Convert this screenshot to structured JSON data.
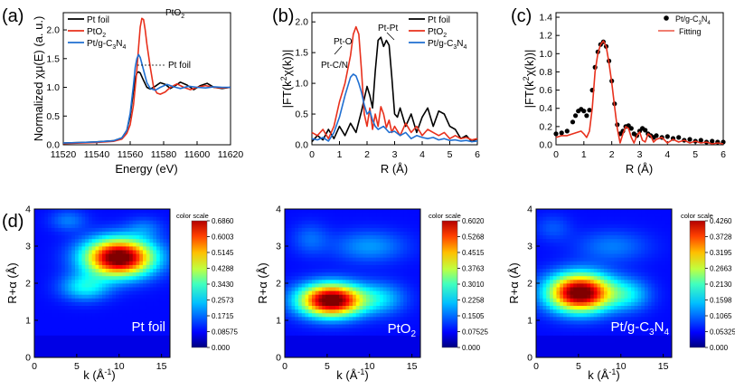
{
  "chart_data": [
    {
      "panel_label": "(a)",
      "type": "line",
      "xlabel": "Energy (eV)",
      "ylabel_parts": [
        "Normalized ",
        "χ",
        "μ(E) (a. u.)"
      ],
      "xlim": [
        11520,
        11620
      ],
      "ylim": [
        0,
        2.3
      ],
      "xticks": [
        "11520",
        "11540",
        "11560",
        "11580",
        "11600",
        "11620"
      ],
      "yticks": [
        "0.0",
        "0.5",
        "1.0",
        "1.5",
        "2.0"
      ],
      "legend": [
        {
          "name": "Pt foil",
          "sub": "",
          "color": "#000000"
        },
        {
          "name": "PtO",
          "sub": "2",
          "color": "#e8301c"
        },
        {
          "name": "Pt/g-C",
          "sub": "3",
          "name2": "N",
          "sub2": "4",
          "color": "#1f6fd1"
        }
      ],
      "annotations": [
        {
          "text": "PtO",
          "sub": "2"
        },
        {
          "text": "Pt foil",
          "sub": ""
        }
      ],
      "series": [
        {
          "name": "Pt foil",
          "color": "#000000",
          "x": [
            11520,
            11530,
            11540,
            11550,
            11555,
            11558,
            11560,
            11562,
            11563,
            11564,
            11565,
            11566,
            11568,
            11570,
            11572,
            11575,
            11578,
            11581,
            11584,
            11587,
            11590,
            11594,
            11598,
            11602,
            11606,
            11610,
            11615,
            11620
          ],
          "y": [
            0.03,
            0.04,
            0.05,
            0.07,
            0.12,
            0.25,
            0.5,
            0.95,
            1.15,
            1.25,
            1.27,
            1.25,
            1.12,
            1.0,
            0.97,
            1.02,
            1.08,
            1.05,
            0.98,
            1.03,
            1.09,
            1.04,
            0.96,
            1.03,
            1.07,
            1.0,
            0.98,
            1.0
          ]
        },
        {
          "name": "PtO2",
          "color": "#e8301c",
          "x": [
            11520,
            11530,
            11540,
            11550,
            11555,
            11558,
            11560,
            11562,
            11564,
            11565,
            11566,
            11567,
            11568,
            11569,
            11570,
            11572,
            11574,
            11576,
            11578,
            11581,
            11584,
            11588,
            11592,
            11596,
            11600,
            11605,
            11610,
            11615,
            11620
          ],
          "y": [
            0.02,
            0.03,
            0.04,
            0.06,
            0.1,
            0.2,
            0.35,
            0.7,
            1.3,
            1.7,
            2.05,
            2.2,
            2.18,
            2.0,
            1.75,
            1.35,
            1.0,
            0.9,
            0.88,
            0.92,
            1.0,
            1.06,
            1.0,
            0.96,
            1.0,
            1.03,
            1.0,
            0.99,
            1.0
          ]
        },
        {
          "name": "Pt/g-C3N4",
          "color": "#1f6fd1",
          "x": [
            11520,
            11530,
            11540,
            11550,
            11555,
            11558,
            11560,
            11562,
            11563,
            11564,
            11565,
            11566,
            11568,
            11570,
            11572,
            11575,
            11578,
            11582,
            11586,
            11590,
            11595,
            11600,
            11605,
            11610,
            11615,
            11620
          ],
          "y": [
            0.03,
            0.04,
            0.05,
            0.07,
            0.12,
            0.25,
            0.55,
            1.05,
            1.35,
            1.5,
            1.57,
            1.52,
            1.3,
            1.08,
            0.98,
            0.95,
            1.0,
            1.05,
            1.01,
            0.98,
            1.02,
            1.0,
            0.99,
            1.01,
            1.0,
            1.0
          ]
        }
      ]
    },
    {
      "panel_label": "(b)",
      "type": "line",
      "xlabel": "R (Å)",
      "ylabel_parts": [
        "|FT(k",
        "2",
        "χ(k))|"
      ],
      "xlim": [
        0,
        6
      ],
      "ylim": [
        0,
        2.15
      ],
      "xticks": [
        "0",
        "1",
        "2",
        "3",
        "4",
        "5",
        "6"
      ],
      "yticks": [
        "0.0",
        "0.5",
        "1.0",
        "1.5",
        "2.0"
      ],
      "legend": [
        {
          "name": "Pt foil",
          "sub": "",
          "color": "#000000"
        },
        {
          "name": "PtO",
          "sub": "2",
          "color": "#e8301c"
        },
        {
          "name": "Pt/g-C",
          "sub": "3",
          "name2": "N",
          "sub2": "4",
          "color": "#1f6fd1"
        }
      ],
      "annotations": [
        {
          "text": "Pt-O",
          "sub": ""
        },
        {
          "text": "Pt-Pt",
          "sub": ""
        },
        {
          "text": "Pt-C/N",
          "sub": ""
        }
      ],
      "series": [
        {
          "name": "Pt foil",
          "color": "#000000",
          "x": [
            0,
            0.2,
            0.4,
            0.6,
            0.8,
            1.0,
            1.2,
            1.4,
            1.6,
            1.8,
            2.0,
            2.1,
            2.2,
            2.3,
            2.4,
            2.5,
            2.6,
            2.7,
            2.8,
            2.9,
            3.0,
            3.1,
            3.2,
            3.4,
            3.6,
            3.8,
            4.0,
            4.2,
            4.4,
            4.6,
            4.8,
            5.0,
            5.2,
            5.4,
            5.6,
            5.8,
            6.0
          ],
          "y": [
            0.05,
            0.15,
            0.08,
            0.25,
            0.1,
            0.3,
            0.15,
            0.35,
            0.2,
            0.55,
            0.95,
            0.8,
            0.6,
            1.2,
            1.7,
            1.75,
            1.6,
            1.7,
            1.62,
            1.1,
            0.5,
            0.45,
            0.6,
            0.3,
            0.5,
            0.2,
            0.45,
            0.6,
            0.3,
            0.55,
            0.5,
            0.3,
            0.25,
            0.1,
            0.15,
            0.05,
            0.1
          ]
        },
        {
          "name": "PtO2",
          "color": "#e8301c",
          "x": [
            0,
            0.2,
            0.4,
            0.6,
            0.8,
            1.0,
            1.2,
            1.4,
            1.5,
            1.6,
            1.7,
            1.8,
            1.9,
            2.0,
            2.1,
            2.2,
            2.3,
            2.4,
            2.5,
            2.6,
            2.7,
            2.8,
            2.9,
            3.0,
            3.2,
            3.4,
            3.6,
            3.8,
            4.0,
            4.2,
            4.4,
            4.6,
            4.8,
            5.0,
            5.2,
            5.4,
            5.6,
            5.8,
            6.0
          ],
          "y": [
            0.2,
            0.15,
            0.25,
            0.1,
            0.3,
            0.7,
            1.0,
            1.45,
            1.8,
            1.92,
            1.8,
            1.2,
            0.5,
            0.3,
            0.6,
            0.25,
            0.5,
            0.3,
            0.62,
            0.5,
            0.28,
            0.4,
            0.2,
            0.3,
            0.15,
            0.35,
            0.2,
            0.3,
            0.15,
            0.25,
            0.2,
            0.15,
            0.2,
            0.1,
            0.15,
            0.1,
            0.12,
            0.08,
            0.1
          ]
        },
        {
          "name": "Pt/g-C3N4",
          "color": "#1f6fd1",
          "x": [
            0,
            0.2,
            0.4,
            0.6,
            0.8,
            1.0,
            1.2,
            1.4,
            1.5,
            1.6,
            1.7,
            1.8,
            1.9,
            2.0,
            2.1,
            2.2,
            2.3,
            2.4,
            2.6,
            2.8,
            3.0,
            3.2,
            3.4,
            3.6,
            3.8,
            4.0,
            4.2,
            4.4,
            4.6,
            4.8,
            5.0,
            5.2,
            5.4,
            5.6,
            5.8,
            6.0
          ],
          "y": [
            0.1,
            0.08,
            0.12,
            0.06,
            0.2,
            0.45,
            0.8,
            1.1,
            1.15,
            1.12,
            1.0,
            0.85,
            0.65,
            0.5,
            0.55,
            0.4,
            0.3,
            0.25,
            0.3,
            0.2,
            0.22,
            0.15,
            0.2,
            0.1,
            0.15,
            0.12,
            0.1,
            0.12,
            0.08,
            0.1,
            0.07,
            0.08,
            0.06,
            0.07,
            0.05,
            0.06
          ]
        }
      ]
    },
    {
      "panel_label": "(c)",
      "type": "line",
      "xlabel": "R (Å)",
      "ylabel_parts": [
        "|FT(k",
        "2",
        "χ(k))|"
      ],
      "xlim": [
        0,
        6
      ],
      "ylim": [
        0,
        1.45
      ],
      "xticks": [
        "0",
        "1",
        "2",
        "3",
        "4",
        "5",
        "6"
      ],
      "yticks": [
        "0.0",
        "0.2",
        "0.4",
        "0.6",
        "0.8",
        "1.0",
        "1.2",
        "1.4"
      ],
      "legend": [
        {
          "name": "Pt/g-C",
          "sub": "3",
          "name2": "N",
          "sub2": "4",
          "color": "#000000",
          "marker": "dot"
        },
        {
          "name": "Fitting",
          "sub": "",
          "color": "#e8301c"
        }
      ],
      "series": [
        {
          "name": "Pt/g-C3N4",
          "color": "#000000",
          "marker": "dot",
          "x": [
            0,
            0.2,
            0.4,
            0.6,
            0.7,
            0.8,
            0.9,
            1.0,
            1.1,
            1.2,
            1.3,
            1.4,
            1.5,
            1.6,
            1.7,
            1.8,
            1.9,
            2.0,
            2.1,
            2.2,
            2.3,
            2.4,
            2.5,
            2.6,
            2.7,
            2.8,
            2.9,
            3.0,
            3.1,
            3.2,
            3.3,
            3.4,
            3.5,
            3.6,
            3.8,
            4.0,
            4.2,
            4.4,
            4.6,
            4.8,
            5.0,
            5.2,
            5.4,
            5.6,
            5.8,
            6.0
          ],
          "y": [
            0.12,
            0.13,
            0.15,
            0.25,
            0.32,
            0.37,
            0.39,
            0.37,
            0.32,
            0.38,
            0.6,
            0.85,
            1.02,
            1.1,
            1.13,
            1.08,
            0.92,
            0.7,
            0.45,
            0.22,
            0.12,
            0.15,
            0.2,
            0.21,
            0.18,
            0.12,
            0.1,
            0.15,
            0.18,
            0.16,
            0.12,
            0.1,
            0.08,
            0.1,
            0.08,
            0.09,
            0.07,
            0.08,
            0.05,
            0.06,
            0.04,
            0.05,
            0.03,
            0.04,
            0.03,
            0.03
          ]
        },
        {
          "name": "Fitting",
          "color": "#e8301c",
          "x": [
            0,
            0.2,
            0.4,
            0.6,
            0.7,
            0.8,
            0.9,
            1.0,
            1.1,
            1.2,
            1.3,
            1.4,
            1.5,
            1.6,
            1.7,
            1.8,
            1.9,
            2.0,
            2.1,
            2.2,
            2.3,
            2.4,
            2.5,
            2.6,
            2.7,
            2.8,
            2.9,
            3.0,
            3.1,
            3.2,
            3.3,
            3.4,
            3.5,
            3.6,
            3.8,
            4.0,
            4.2,
            4.4,
            4.6,
            4.8,
            5.0,
            5.2,
            5.4,
            5.6,
            5.8,
            6.0
          ],
          "y": [
            0.08,
            0.1,
            0.1,
            0.12,
            0.13,
            0.14,
            0.15,
            0.12,
            0.08,
            0.15,
            0.4,
            0.8,
            1.0,
            1.1,
            1.14,
            1.08,
            0.9,
            0.68,
            0.42,
            0.18,
            0.02,
            0.12,
            0.2,
            0.18,
            0.08,
            0.02,
            0.1,
            0.14,
            0.05,
            0.03,
            0.12,
            0.1,
            0.03,
            0.06,
            0.08,
            0.02,
            0.06,
            0.03,
            0.05,
            0.02,
            0.04,
            0.02,
            0.03,
            0.01,
            0.02,
            0.01
          ]
        }
      ]
    },
    {
      "panel_label": "(d)",
      "type": "heatmap",
      "sample": "Pt foil",
      "sample_parts": [
        "Pt foil"
      ],
      "xlabel_parts": [
        "k (Å",
        "-1",
        ")"
      ],
      "ylabel": "R+α (Å)",
      "xlim": [
        0,
        16
      ],
      "ylim": [
        0,
        4
      ],
      "xticks": [
        "0",
        "5",
        "10",
        "15"
      ],
      "yticks": [
        "0",
        "1",
        "2",
        "3",
        "4"
      ],
      "colorbar_title": "color scale",
      "colorbar_ticks": [
        "0.6860",
        "0.6003",
        "0.5145",
        "0.4288",
        "0.3430",
        "0.2573",
        "0.1715",
        "0.08575",
        "0.000"
      ],
      "peaks": [
        {
          "k": 10.0,
          "r": 2.7,
          "amp": 1.0,
          "sk": 2.8,
          "sr": 0.35
        },
        {
          "k": 6.0,
          "r": 1.9,
          "amp": 0.25,
          "sk": 2.0,
          "sr": 0.25
        },
        {
          "k": 4.0,
          "r": 3.7,
          "amp": 0.12,
          "sk": 1.5,
          "sr": 0.2
        },
        {
          "k": 13.0,
          "r": 3.5,
          "amp": 0.1,
          "sk": 1.5,
          "sr": 0.2
        }
      ]
    },
    {
      "panel_label": "",
      "type": "heatmap",
      "sample": "PtO2",
      "sample_parts": [
        "PtO",
        "2"
      ],
      "xlabel_parts": [
        "k (Å",
        "-1",
        ")"
      ],
      "ylabel": "R+α (Å)",
      "xlim": [
        0,
        16
      ],
      "ylim": [
        0,
        4
      ],
      "xticks": [
        "0",
        "5",
        "10",
        "15"
      ],
      "yticks": [
        "0",
        "1",
        "2",
        "3",
        "4"
      ],
      "colorbar_title": "color scale",
      "colorbar_ticks": [
        "0.6020",
        "0.5268",
        "0.4515",
        "0.3763",
        "0.3010",
        "0.2258",
        "0.1505",
        "0.07525",
        "0.000"
      ],
      "peaks": [
        {
          "k": 5.5,
          "r": 1.55,
          "amp": 1.0,
          "sk": 2.6,
          "sr": 0.3
        },
        {
          "k": 11.5,
          "r": 1.6,
          "amp": 0.18,
          "sk": 2.0,
          "sr": 0.3
        },
        {
          "k": 10.0,
          "r": 3.0,
          "amp": 0.15,
          "sk": 3.0,
          "sr": 0.3
        },
        {
          "k": 3.0,
          "r": 3.2,
          "amp": 0.1,
          "sk": 1.5,
          "sr": 0.3
        }
      ]
    },
    {
      "panel_label": "",
      "type": "heatmap",
      "sample": "Pt/g-C3N4",
      "sample_parts": [
        "Pt/g-C",
        "3",
        "N",
        "4"
      ],
      "xlabel_parts": [
        "k (Å",
        "-1",
        ")"
      ],
      "ylabel": "R+α (Å)",
      "xlim": [
        0,
        16
      ],
      "ylim": [
        0,
        4
      ],
      "xticks": [
        "0",
        "5",
        "10",
        "15"
      ],
      "yticks": [
        "0",
        "1",
        "2",
        "3",
        "4"
      ],
      "colorbar_title": "color scale",
      "colorbar_ticks": [
        "0.4260",
        "0.3728",
        "0.3195",
        "0.2663",
        "0.2130",
        "0.1598",
        "0.1065",
        "0.05325",
        "0.000"
      ],
      "peaks": [
        {
          "k": 5.2,
          "r": 1.75,
          "amp": 1.0,
          "sk": 2.6,
          "sr": 0.35
        },
        {
          "k": 11.0,
          "r": 1.7,
          "amp": 0.2,
          "sk": 1.8,
          "sr": 0.3
        },
        {
          "k": 9.0,
          "r": 3.0,
          "amp": 0.12,
          "sk": 3.0,
          "sr": 0.3
        },
        {
          "k": 2.0,
          "r": 3.5,
          "amp": 0.08,
          "sk": 1.5,
          "sr": 0.25
        }
      ]
    }
  ]
}
